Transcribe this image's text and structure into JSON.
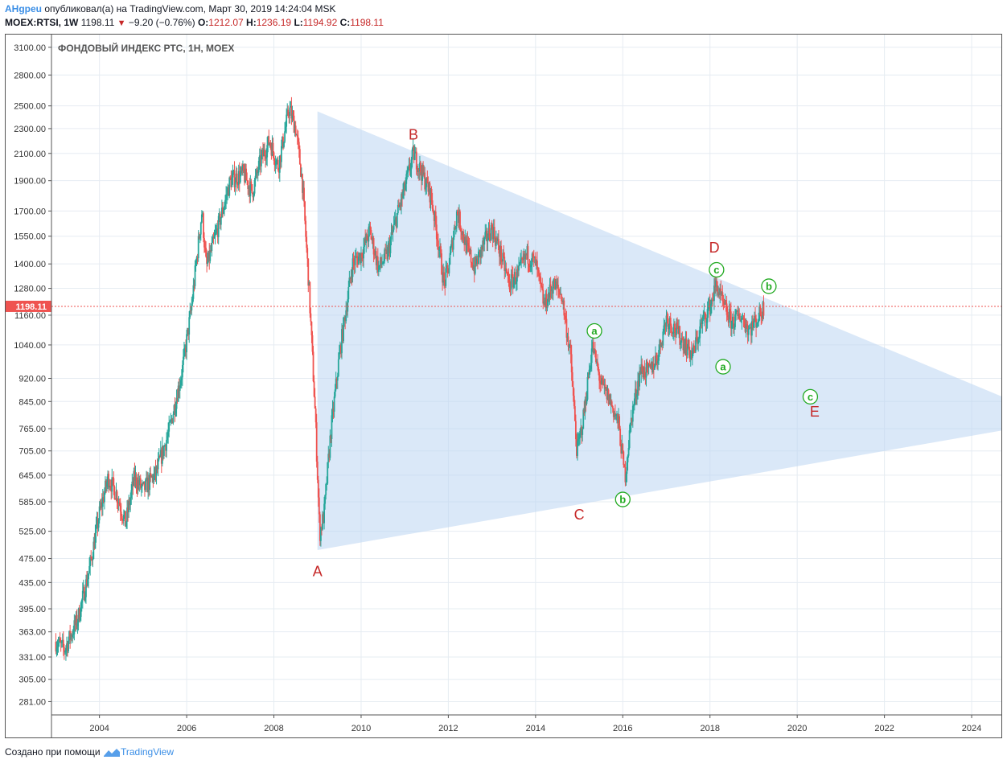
{
  "header": {
    "author": "AHgpeu",
    "published_text": "опубликовал(а) на TradingView.com, Март 30, 2019 14:24:04 MSK",
    "symbol": "MOEX:RTSI, 1W",
    "last": "1198.11",
    "change": "−9.20 (−0.76%)",
    "o_label": "O:",
    "o_value": "1212.07",
    "h_label": "H:",
    "h_value": "1236.19",
    "l_label": "L:",
    "l_value": "1194.92",
    "c_label": "C:",
    "c_value": "1198.11"
  },
  "footer": {
    "created_text": "Создано при помощи",
    "brand": "TradingView"
  },
  "colors": {
    "up": "#26a69a",
    "down": "#ef5350",
    "triangle": "#bbd6f2",
    "wave_major": "#c62828",
    "wave_minor": "#22aa22",
    "price_line": "#ef5350"
  },
  "chart_data": {
    "type": "candlestick",
    "title": "ФОНДОВЫЙ ИНДЕКС РТС, 1Н, MOEX",
    "y_scale": "log",
    "ylim": [
      270,
      3200
    ],
    "xlim": [
      2002.9,
      2024.7
    ],
    "y_ticks": [
      "3100.00",
      "2800.00",
      "2500.00",
      "2300.00",
      "2100.00",
      "1900.00",
      "1700.00",
      "1550.00",
      "1400.00",
      "1280.00",
      "1160.00",
      "1040.00",
      "920.00",
      "845.00",
      "765.00",
      "705.00",
      "645.00",
      "585.00",
      "525.00",
      "475.00",
      "435.00",
      "395.00",
      "363.00",
      "331.00",
      "305.00",
      "281.00"
    ],
    "x_ticks": [
      "2004",
      "2006",
      "2008",
      "2010",
      "2012",
      "2014",
      "2016",
      "2018",
      "2020",
      "2022",
      "2024"
    ],
    "last_price_label": "1198.11",
    "last_price": 1198.11,
    "price_path": [
      [
        2003.0,
        350
      ],
      [
        2003.2,
        340
      ],
      [
        2003.5,
        380
      ],
      [
        2003.75,
        450
      ],
      [
        2004.0,
        560
      ],
      [
        2004.2,
        640
      ],
      [
        2004.4,
        600
      ],
      [
        2004.6,
        540
      ],
      [
        2004.8,
        640
      ],
      [
        2005.0,
        610
      ],
      [
        2005.3,
        650
      ],
      [
        2005.6,
        760
      ],
      [
        2005.9,
        950
      ],
      [
        2006.1,
        1180
      ],
      [
        2006.35,
        1700
      ],
      [
        2006.45,
        1380
      ],
      [
        2006.6,
        1500
      ],
      [
        2006.8,
        1680
      ],
      [
        2007.0,
        1900
      ],
      [
        2007.3,
        1950
      ],
      [
        2007.5,
        1820
      ],
      [
        2007.7,
        2050
      ],
      [
        2007.9,
        2200
      ],
      [
        2008.1,
        2000
      ],
      [
        2008.35,
        2480
      ],
      [
        2008.5,
        2300
      ],
      [
        2008.65,
        1900
      ],
      [
        2008.8,
        1300
      ],
      [
        2008.95,
        800
      ],
      [
        2009.05,
        520
      ],
      [
        2009.15,
        560
      ],
      [
        2009.3,
        750
      ],
      [
        2009.5,
        1000
      ],
      [
        2009.8,
        1400
      ],
      [
        2010.0,
        1450
      ],
      [
        2010.2,
        1580
      ],
      [
        2010.4,
        1380
      ],
      [
        2010.6,
        1450
      ],
      [
        2010.8,
        1650
      ],
      [
        2011.0,
        1850
      ],
      [
        2011.2,
        2100
      ],
      [
        2011.4,
        1950
      ],
      [
        2011.6,
        1800
      ],
      [
        2011.75,
        1550
      ],
      [
        2011.9,
        1300
      ],
      [
        2012.0,
        1380
      ],
      [
        2012.2,
        1700
      ],
      [
        2012.4,
        1500
      ],
      [
        2012.6,
        1380
      ],
      [
        2012.8,
        1500
      ],
      [
        2013.0,
        1600
      ],
      [
        2013.2,
        1450
      ],
      [
        2013.4,
        1300
      ],
      [
        2013.6,
        1350
      ],
      [
        2013.8,
        1450
      ],
      [
        2014.0,
        1400
      ],
      [
        2014.2,
        1200
      ],
      [
        2014.4,
        1300
      ],
      [
        2014.6,
        1250
      ],
      [
        2014.8,
        1000
      ],
      [
        2014.95,
        700
      ],
      [
        2015.1,
        800
      ],
      [
        2015.3,
        1040
      ],
      [
        2015.5,
        900
      ],
      [
        2015.7,
        850
      ],
      [
        2015.9,
        780
      ],
      [
        2016.05,
        640
      ],
      [
        2016.2,
        800
      ],
      [
        2016.4,
        950
      ],
      [
        2016.6,
        940
      ],
      [
        2016.8,
        1000
      ],
      [
        2017.0,
        1150
      ],
      [
        2017.2,
        1100
      ],
      [
        2017.4,
        1050
      ],
      [
        2017.6,
        1000
      ],
      [
        2017.8,
        1120
      ],
      [
        2018.0,
        1200
      ],
      [
        2018.15,
        1300
      ],
      [
        2018.3,
        1200
      ],
      [
        2018.5,
        1130
      ],
      [
        2018.7,
        1160
      ],
      [
        2018.9,
        1100
      ],
      [
        2019.1,
        1150
      ],
      [
        2019.24,
        1198
      ]
    ],
    "annotations": {
      "triangle_upper": [
        [
          2009.0,
          2450
        ],
        [
          2024.7,
          860
        ]
      ],
      "triangle_lower": [
        [
          2009.0,
          490
        ],
        [
          2024.7,
          760
        ]
      ],
      "waves_major": [
        {
          "label": "A",
          "x": 2009.0,
          "y": 445
        },
        {
          "label": "B",
          "x": 2011.2,
          "y": 2210
        },
        {
          "label": "C",
          "x": 2015.0,
          "y": 548
        },
        {
          "label": "D",
          "x": 2018.1,
          "y": 1460
        },
        {
          "label": "E",
          "x": 2020.4,
          "y": 800
        }
      ],
      "waves_minor": [
        {
          "label": "a",
          "x": 2015.35,
          "y": 1095
        },
        {
          "label": "b",
          "x": 2016.0,
          "y": 590
        },
        {
          "label": "c",
          "x": 2018.15,
          "y": 1370
        },
        {
          "label": "a",
          "x": 2018.3,
          "y": 960
        },
        {
          "label": "b",
          "x": 2019.35,
          "y": 1290
        },
        {
          "label": "c",
          "x": 2020.3,
          "y": 860
        }
      ]
    }
  }
}
